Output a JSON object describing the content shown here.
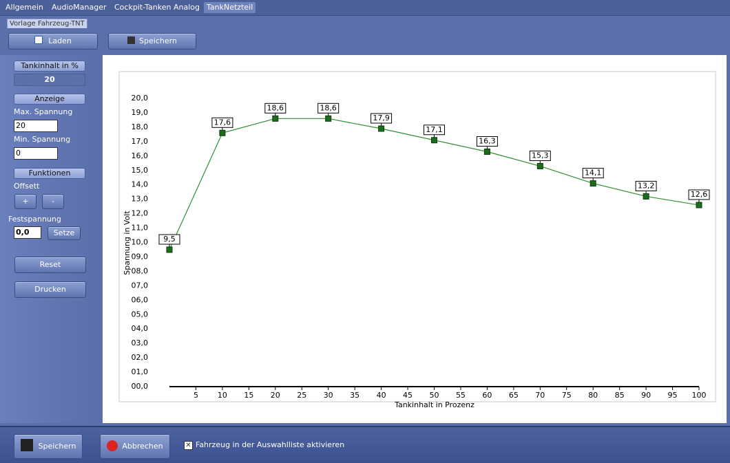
{
  "tabs": [
    "Allgemein",
    "AudioManager",
    "Cockpit-Tanken Analog",
    "TankNetzteil"
  ],
  "group_title": "Vorlage Fahrzeug-TNT",
  "toolbar": {
    "load": "Laden",
    "save": "Speichern"
  },
  "sidebar": {
    "tank_header": "Tankinhalt in %",
    "tank_value": "20",
    "display_header": "Anzeige",
    "max_label": "Max. Spannung",
    "max_value": "20",
    "min_label": "Min. Spannung",
    "min_value": "0",
    "functions_header": "Funktionen",
    "offset_label": "Offsett",
    "plus": "+",
    "minus": "-",
    "fixed_label": "Festspannung",
    "fixed_value": "0,0",
    "set": "Setze",
    "reset": "Reset",
    "print": "Drucken"
  },
  "chart_data": {
    "type": "line",
    "x_label": "Tankinhalt in Prozenz",
    "y_label": "Spannung in Volt",
    "x": [
      0,
      10,
      20,
      30,
      40,
      50,
      60,
      70,
      80,
      90,
      100
    ],
    "values": [
      9.5,
      17.6,
      18.6,
      18.6,
      17.9,
      17.1,
      16.3,
      15.3,
      14.1,
      13.2,
      12.6
    ],
    "value_labels": [
      "9,5",
      "17,6",
      "18,6",
      "18,6",
      "17,9",
      "17,1",
      "16,3",
      "15,3",
      "14,1",
      "13,2",
      "12,6"
    ],
    "color": "#2f8f2f",
    "marker_color": "#1d6b1d",
    "xlim": [
      0,
      100
    ],
    "ylim": [
      0,
      20
    ],
    "xticks": [
      5,
      10,
      15,
      20,
      25,
      30,
      35,
      40,
      45,
      50,
      55,
      60,
      65,
      70,
      75,
      80,
      85,
      90,
      95,
      100
    ],
    "yticks": [
      {
        "value": 0,
        "label": "00,0"
      },
      {
        "value": 1,
        "label": "01,0"
      },
      {
        "value": 2,
        "label": "02,0"
      },
      {
        "value": 3,
        "label": "03,0"
      },
      {
        "value": 4,
        "label": "04,0"
      },
      {
        "value": 5,
        "label": "05,0"
      },
      {
        "value": 6,
        "label": "06,0"
      },
      {
        "value": 7,
        "label": "07,0"
      },
      {
        "value": 8,
        "label": "08,0"
      },
      {
        "value": 9,
        "label": "09,0"
      },
      {
        "value": 10,
        "label": "10,0"
      },
      {
        "value": 11,
        "label": "11,0"
      },
      {
        "value": 12,
        "label": "12,0"
      },
      {
        "value": 13,
        "label": "13,0"
      },
      {
        "value": 14,
        "label": "14,0"
      },
      {
        "value": 15,
        "label": "15,0"
      },
      {
        "value": 16,
        "label": "16,0"
      },
      {
        "value": 17,
        "label": "17,0"
      },
      {
        "value": 18,
        "label": "18,0"
      },
      {
        "value": 19,
        "label": "19,0"
      },
      {
        "value": 20,
        "label": "20,0"
      }
    ],
    "grid": false
  },
  "footer": {
    "save": "Speichern",
    "cancel": "Abbrechen",
    "activate": "Fahrzeug in der Auswahlliste aktivieren"
  }
}
